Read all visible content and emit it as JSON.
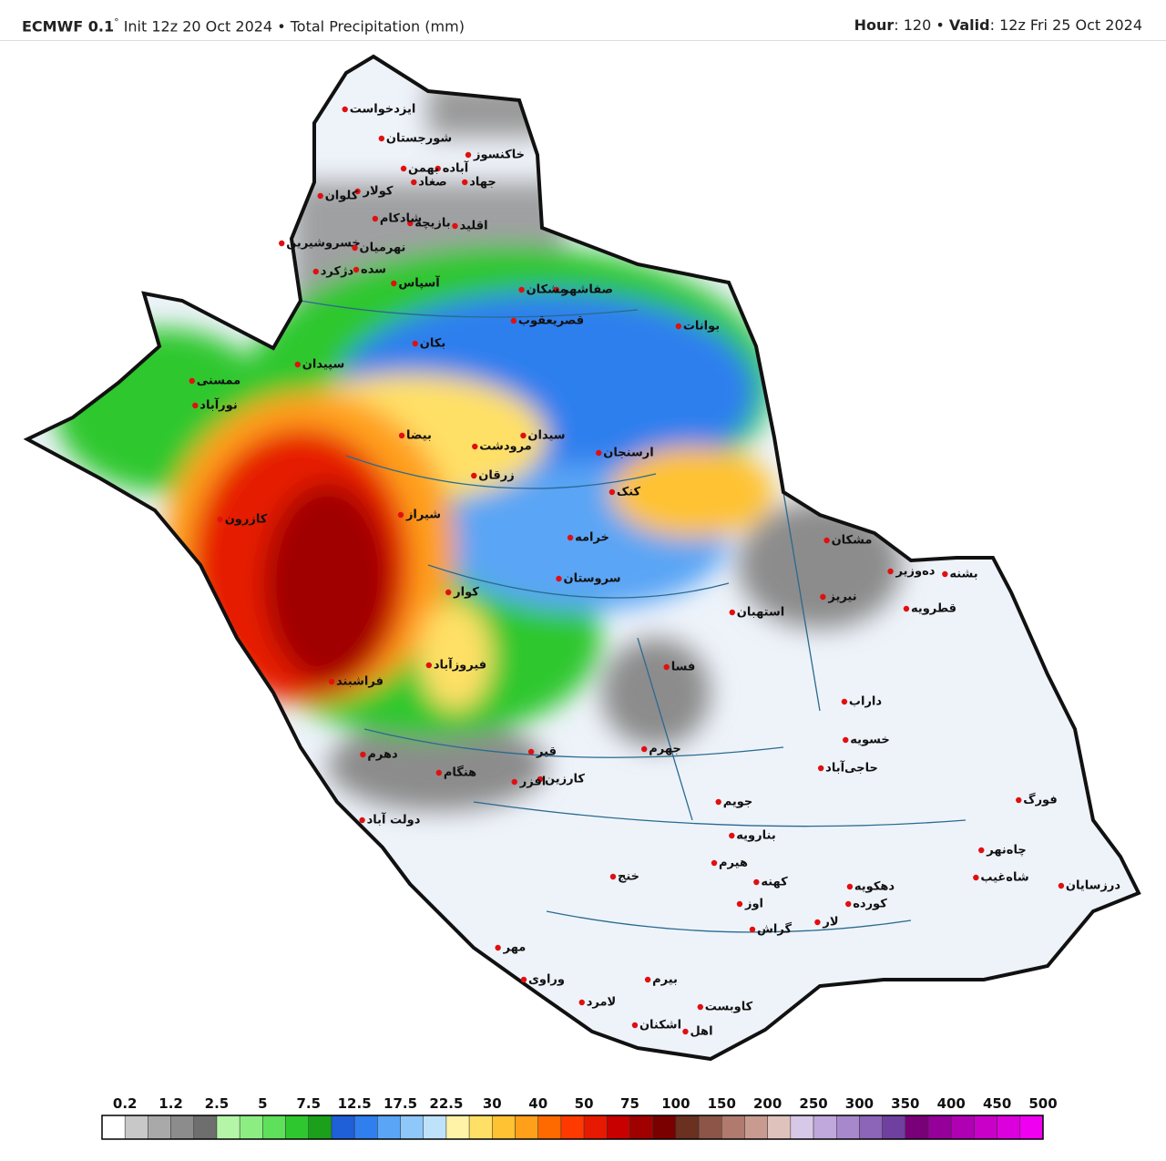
{
  "header": {
    "model": "ECMWF 0.1",
    "degree": "°",
    "init": "Init 12z 20 Oct 2024",
    "separator": "•",
    "field": "Total Precipitation (mm)",
    "hour_label": "Hour",
    "hour_value": ": 120",
    "valid_label": "Valid",
    "valid_value": ": 12z Fri 25 Oct 2024"
  },
  "colorbar": {
    "ticks": [
      0.2,
      1.2,
      2.5,
      5,
      7.5,
      12.5,
      17.5,
      22.5,
      30,
      40,
      50,
      75,
      100,
      150,
      200,
      250,
      300,
      350,
      400,
      450,
      500
    ],
    "colors": [
      "#ffffff",
      "#c8c8c8",
      "#a9a9a9",
      "#8c8c8c",
      "#6e6e6e",
      "#b4f5a8",
      "#8cee82",
      "#5ee05a",
      "#2fc72f",
      "#1aa01a",
      "#1f5fd8",
      "#2f7fee",
      "#5aa5f5",
      "#8ec8fa",
      "#bfe2fb",
      "#fff3a8",
      "#ffe066",
      "#ffc233",
      "#ff9f1a",
      "#ff6a00",
      "#ff3a00",
      "#e61a00",
      "#c80000",
      "#a00000",
      "#7a0000",
      "#6a3020",
      "#8c5548",
      "#b07a6e",
      "#c89a90",
      "#e0c2bc",
      "#d8c8e8",
      "#c0a8dc",
      "#a888cc",
      "#8c64b8",
      "#7040a0",
      "#7a007a",
      "#96009a",
      "#b000b4",
      "#c800c8",
      "#dc00dc",
      "#f000f0"
    ]
  },
  "map": {
    "cities": [
      "ایزدخواست",
      "شورجستان",
      "خاکنسوز",
      "آباده",
      "بهمن",
      "صغاد",
      "جهاد",
      "کولار",
      "کلوان",
      "اقلید",
      "بازیچه",
      "شادکام",
      "خسروشیرین",
      "نهرمیان",
      "دژکرد",
      "سده",
      "آسپاس",
      "صفاشهر",
      "مشکان",
      "بوانات",
      "قصریعقوب",
      "بکان",
      "سپیدان",
      "نورآباد",
      "ممسنی",
      "کوار",
      "شیراز",
      "بیضا",
      "زرقان",
      "مرودشت",
      "سیدان",
      "ارسنجان",
      "کنک",
      "خرامه",
      "سروستان",
      "استهبان",
      "نیریز",
      "داراب",
      "فسا",
      "جهرم",
      "قیر",
      "کارزین",
      "فراشبند",
      "کازرون",
      "فیروزآباد",
      "خنج",
      "لامرد",
      "مهر",
      "گراش",
      "لار",
      "اوز",
      "حاجی‌آباد",
      "خسویه",
      "فورگ",
      "درزسایان",
      "شاه‌غیب",
      "چاه‌نهر",
      "قطرویه",
      "دهرم",
      "دولت آباد",
      "هنگام",
      "افزر",
      "کاوبست",
      "اهل",
      "اشکنان",
      "وراوی",
      "بیرم",
      "دهکویه",
      "کورده",
      "بنارویه",
      "جویم",
      "هیرم",
      "کهنه",
      "مشکان",
      "ده‌وزیر",
      "بشنه"
    ]
  }
}
